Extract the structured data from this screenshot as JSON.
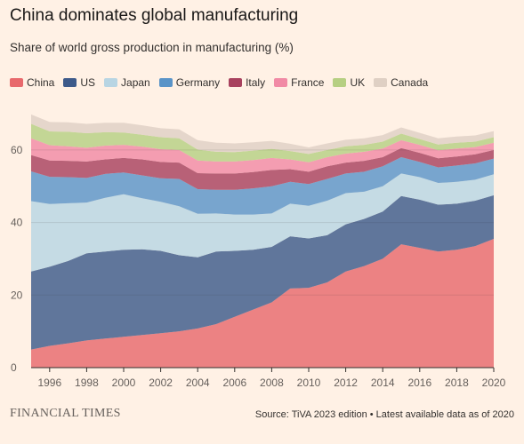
{
  "title": "China dominates global manufacturing",
  "subtitle": "Share of world gross production in manufacturing (%)",
  "footer": {
    "brand": "FINANCIAL TIMES",
    "source": "Source: TiVA 2023 edition • Latest available data as of 2020"
  },
  "colors": {
    "background": "#fff1e5",
    "China": "#e8696c",
    "US": "#3d5a8a",
    "Japan": "#b8d5e3",
    "Germany": "#5a94c8",
    "Italy": "#a8415e",
    "France": "#f18aa5",
    "UK": "#b6cf82",
    "Canada": "#dfd0c4"
  },
  "chart_data": {
    "type": "area",
    "stacked": true,
    "x": [
      1995,
      1996,
      1997,
      1998,
      1999,
      2000,
      2001,
      2002,
      2003,
      2004,
      2005,
      2006,
      2007,
      2008,
      2009,
      2010,
      2011,
      2012,
      2013,
      2014,
      2015,
      2016,
      2017,
      2018,
      2019,
      2020
    ],
    "xticks": [
      "1996",
      "1998",
      "2000",
      "2002",
      "2004",
      "2006",
      "2008",
      "2010",
      "2012",
      "2014",
      "2016",
      "2018",
      "2020"
    ],
    "yticks": [
      "0",
      "20",
      "40",
      "60"
    ],
    "ylim": [
      0,
      70
    ],
    "xlim": [
      1995,
      2020
    ],
    "grid": true,
    "legend_position": "top-left",
    "series": [
      {
        "name": "China",
        "values": [
          5.0,
          6.0,
          6.7,
          7.5,
          8.0,
          8.5,
          9.0,
          9.5,
          10.0,
          10.8,
          12.0,
          14.0,
          16.0,
          18.0,
          21.8,
          22.0,
          23.5,
          26.5,
          28.0,
          30.0,
          34.0,
          33.0,
          32.0,
          32.5,
          33.5,
          35.5
        ]
      },
      {
        "name": "US",
        "values": [
          21.5,
          21.8,
          22.7,
          24.0,
          24.0,
          24.0,
          23.6,
          22.7,
          21.0,
          19.6,
          20.0,
          18.2,
          16.5,
          15.3,
          14.4,
          13.6,
          13.0,
          13.0,
          13.0,
          13.0,
          13.3,
          13.3,
          12.9,
          12.7,
          12.5,
          12.0
        ]
      },
      {
        "name": "Japan",
        "values": [
          19.4,
          17.3,
          15.9,
          14.0,
          14.8,
          15.3,
          14.1,
          13.5,
          13.5,
          12.0,
          10.5,
          10.0,
          9.7,
          9.2,
          9.0,
          9.0,
          9.5,
          8.6,
          7.5,
          7.0,
          6.2,
          6.2,
          6.0,
          6.0,
          5.8,
          5.8
        ]
      },
      {
        "name": "Germany",
        "values": [
          8.2,
          7.5,
          7.2,
          6.8,
          6.6,
          6.0,
          6.3,
          6.5,
          7.5,
          6.8,
          6.5,
          6.8,
          7.2,
          7.5,
          6.0,
          6.0,
          6.0,
          5.4,
          5.5,
          5.5,
          4.5,
          4.2,
          4.3,
          4.5,
          4.5,
          4.3
        ]
      },
      {
        "name": "Italy",
        "values": [
          4.5,
          4.5,
          4.5,
          4.5,
          4.0,
          4.0,
          4.4,
          4.5,
          4.5,
          4.4,
          4.5,
          4.5,
          4.5,
          4.5,
          3.5,
          3.4,
          3.5,
          3.0,
          3.0,
          2.5,
          2.5,
          2.5,
          2.5,
          2.5,
          2.5,
          2.4
        ]
      },
      {
        "name": "France",
        "values": [
          4.6,
          4.2,
          4.0,
          3.8,
          3.8,
          3.6,
          3.5,
          3.5,
          3.5,
          3.5,
          3.3,
          3.3,
          3.3,
          3.3,
          2.7,
          2.6,
          2.5,
          2.5,
          2.5,
          2.4,
          2.2,
          2.2,
          2.2,
          2.2,
          2.0,
          2.0
        ]
      },
      {
        "name": "UK",
        "values": [
          4.0,
          3.8,
          4.0,
          4.0,
          3.7,
          3.4,
          3.3,
          3.3,
          3.2,
          3.0,
          2.7,
          2.6,
          2.6,
          2.5,
          2.3,
          2.3,
          2.0,
          2.0,
          1.9,
          1.9,
          1.8,
          1.6,
          1.6,
          1.6,
          1.5,
          1.5
        ]
      },
      {
        "name": "Canada",
        "values": [
          2.6,
          2.6,
          2.6,
          2.6,
          2.6,
          2.7,
          2.6,
          2.5,
          2.5,
          2.6,
          2.5,
          2.4,
          2.3,
          2.2,
          2.0,
          1.8,
          1.8,
          1.8,
          1.8,
          1.8,
          1.7,
          1.7,
          1.7,
          1.7,
          1.7,
          1.7
        ]
      }
    ]
  }
}
